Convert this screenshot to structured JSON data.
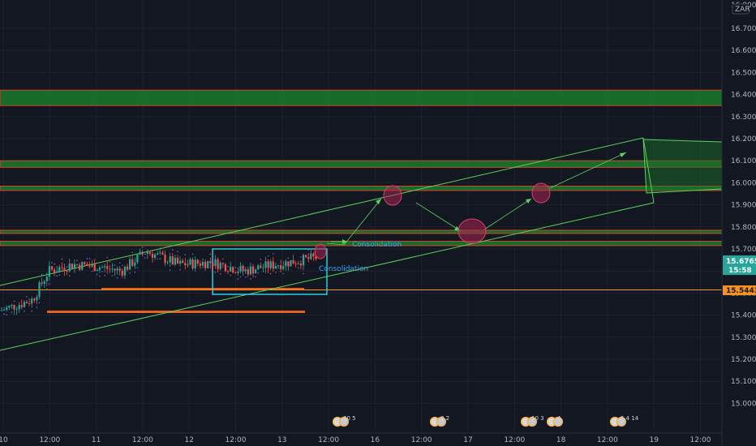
{
  "chart_data": {
    "type": "candlestick",
    "currency": "ZAR",
    "price_axis": {
      "ticks": [
        "16.70000",
        "16.60000",
        "16.50000",
        "16.40000",
        "16.30000",
        "16.20000",
        "16.10000",
        "16.00000",
        "15.90000",
        "15.80000",
        "15.70000",
        "15.60000",
        "15.50000",
        "15.40000",
        "15.30000",
        "15.20000",
        "15.10000",
        "15.00000"
      ],
      "top_label": "16.80000",
      "range": [
        14.97,
        16.81
      ]
    },
    "time_axis": {
      "ticks": [
        "10",
        "12:00",
        "11",
        "12:00",
        "12",
        "12:00",
        "13",
        "12:00",
        "16",
        "12:00",
        "17",
        "12:00",
        "18",
        "12:00",
        "19",
        "12:00"
      ]
    },
    "current_price": {
      "value": "15.67650",
      "countdown": "15:58",
      "color": "#26a69a"
    },
    "marked_level": {
      "value": "15.54438",
      "color": "#f7931a"
    },
    "zones": [
      {
        "low": 16.35,
        "high": 16.42,
        "color": "#1b7a2c"
      },
      {
        "low": 16.07,
        "high": 16.1,
        "color": "#1b7a2c"
      },
      {
        "low": 15.965,
        "high": 15.985,
        "color": "#1b7a2c"
      },
      {
        "low": 15.77,
        "high": 15.785,
        "color": "#1b7a2c"
      },
      {
        "low": 15.715,
        "high": 15.735,
        "color": "#1b7a2c"
      }
    ],
    "annotations": [
      {
        "label": "Consolidation"
      },
      {
        "label": "Consolidation"
      }
    ],
    "event_markers": [
      {
        "label": "30 5"
      },
      {
        "label": "3 2"
      },
      {
        "label": "10 3"
      },
      {
        "label": "4"
      },
      {
        "label": "5 4 14"
      }
    ],
    "colors": {
      "bull": "#26a69a",
      "bear": "#ef5350",
      "channel": "#5ad35a",
      "box": "#2ecce0",
      "support": "#e8601c",
      "ellipse": "#c8325a"
    }
  }
}
